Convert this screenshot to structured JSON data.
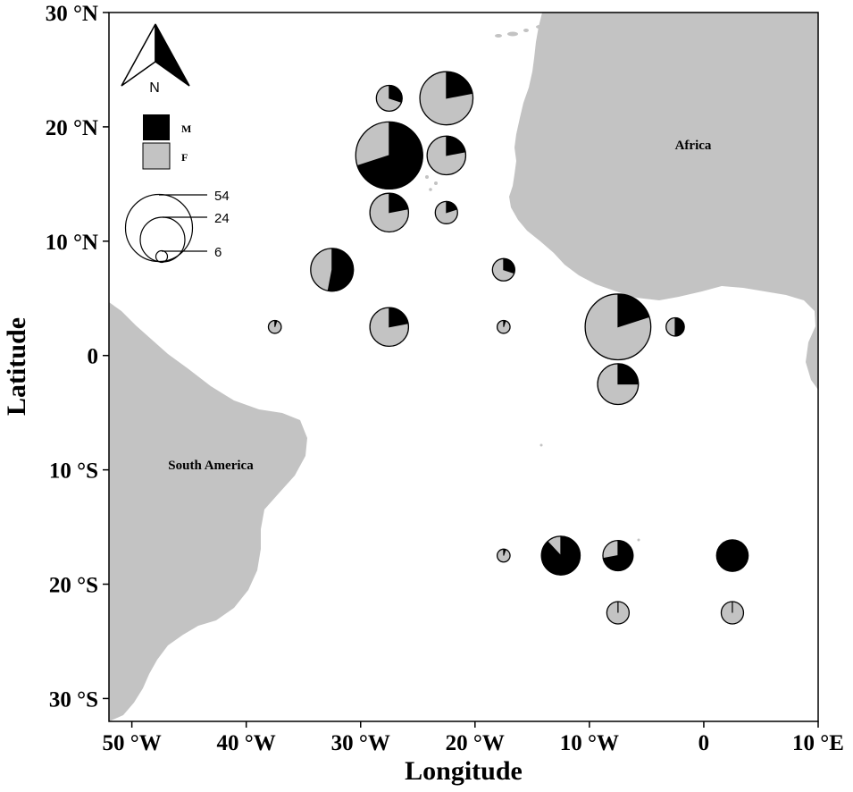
{
  "axes": {
    "xlabel": "Longitude",
    "ylabel": "Latitude",
    "x_ticks": [
      {
        "value": -50,
        "label": "50 °W"
      },
      {
        "value": -40,
        "label": "40 °W"
      },
      {
        "value": -30,
        "label": "30 °W"
      },
      {
        "value": -20,
        "label": "20 °W"
      },
      {
        "value": -10,
        "label": "10 °W"
      },
      {
        "value": 0,
        "label": "0"
      },
      {
        "value": 10,
        "label": "10 °E"
      }
    ],
    "y_ticks": [
      {
        "value": 30,
        "label": "30 °N"
      },
      {
        "value": 20,
        "label": "20 °N"
      },
      {
        "value": 10,
        "label": "10 °N"
      },
      {
        "value": 0,
        "label": "0"
      },
      {
        "value": -10,
        "label": "10 °S"
      },
      {
        "value": -20,
        "label": "20 °S"
      },
      {
        "value": -30,
        "label": "30 °S"
      }
    ],
    "xlim": [
      -52,
      10
    ],
    "ylim": [
      -32,
      30
    ]
  },
  "regions": {
    "africa": "Africa",
    "south_america": "South America"
  },
  "compass": {
    "label": "N"
  },
  "legend": {
    "sex_items": [
      {
        "key": "M",
        "label": "M",
        "color": "#000000"
      },
      {
        "key": "F",
        "label": "F",
        "color": "#c3c3c3"
      }
    ],
    "size_items": [
      {
        "value": 54,
        "label": "54"
      },
      {
        "value": 24,
        "label": "24"
      },
      {
        "value": 6,
        "label": "6"
      }
    ]
  },
  "colors": {
    "land": "#c3c3c3",
    "male": "#000000",
    "female": "#c3c3c3",
    "ocean": "#ffffff"
  },
  "chart_data": {
    "type": "pie-map",
    "value_unit": "individuals (estimated from symbol size)",
    "points": [
      {
        "lon": -27.5,
        "lat": 22.5,
        "n": 8,
        "male_fraction": 0.3
      },
      {
        "lon": -22.5,
        "lat": 22.5,
        "n": 34,
        "male_fraction": 0.22
      },
      {
        "lon": -27.5,
        "lat": 17.5,
        "n": 54,
        "male_fraction": 0.7
      },
      {
        "lon": -22.5,
        "lat": 17.5,
        "n": 18,
        "male_fraction": 0.22
      },
      {
        "lon": -27.5,
        "lat": 12.5,
        "n": 18,
        "male_fraction": 0.22
      },
      {
        "lon": -22.5,
        "lat": 12.5,
        "n": 6,
        "male_fraction": 0.2
      },
      {
        "lon": -32.5,
        "lat": 7.5,
        "n": 22,
        "male_fraction": 0.53
      },
      {
        "lon": -17.5,
        "lat": 7.5,
        "n": 6,
        "male_fraction": 0.3
      },
      {
        "lon": -37.5,
        "lat": 2.5,
        "n": 2,
        "male_fraction": 0.05
      },
      {
        "lon": -27.5,
        "lat": 2.5,
        "n": 18,
        "male_fraction": 0.22
      },
      {
        "lon": -17.5,
        "lat": 2.5,
        "n": 2,
        "male_fraction": 0.05
      },
      {
        "lon": -7.5,
        "lat": 2.5,
        "n": 52,
        "male_fraction": 0.2
      },
      {
        "lon": -2.5,
        "lat": 2.5,
        "n": 4,
        "male_fraction": 0.5
      },
      {
        "lon": -7.5,
        "lat": -2.5,
        "n": 20,
        "male_fraction": 0.25
      },
      {
        "lon": -17.5,
        "lat": -17.5,
        "n": 2,
        "male_fraction": 0.05
      },
      {
        "lon": -12.5,
        "lat": -17.5,
        "n": 18,
        "male_fraction": 0.88
      },
      {
        "lon": -7.5,
        "lat": -17.5,
        "n": 11,
        "male_fraction": 0.72
      },
      {
        "lon": 2.5,
        "lat": -17.5,
        "n": 12,
        "male_fraction": 1.0
      },
      {
        "lon": -7.5,
        "lat": -22.5,
        "n": 6,
        "male_fraction": 0.0
      },
      {
        "lon": 2.5,
        "lat": -22.5,
        "n": 6,
        "male_fraction": 0.0
      }
    ]
  }
}
